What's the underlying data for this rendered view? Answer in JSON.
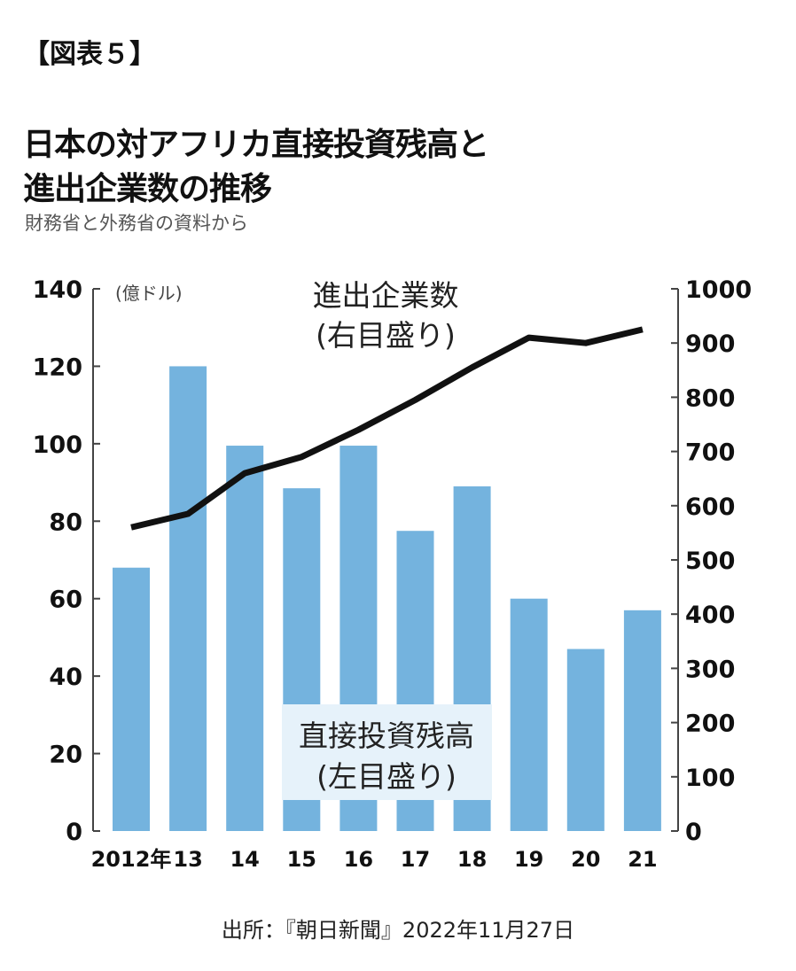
{
  "figure_label": "【図表５】",
  "title_line1": "日本の対アフリカ直接投資残高と",
  "title_line2": "進出企業数の推移",
  "subtitle": "財務省と外務省の資料から",
  "source": "出所：『朝日新聞』2022年11月27日",
  "chart_data": {
    "type": "bar+line",
    "categories": [
      "2012年",
      "13",
      "14",
      "15",
      "16",
      "17",
      "18",
      "19",
      "20",
      "21"
    ],
    "series": [
      {
        "name": "直接投資残高",
        "axis": "left",
        "type": "bar",
        "label_line1": "直接投資残高",
        "label_line2": "(左目盛り)",
        "color": "#74b3de",
        "values": [
          68,
          120,
          99.5,
          88.5,
          99.5,
          77.5,
          89,
          60,
          47,
          57
        ]
      },
      {
        "name": "進出企業数",
        "axis": "right",
        "type": "line",
        "label_line1": "進出企業数",
        "label_line2": "(右目盛り)",
        "color": "#111111",
        "values": [
          560,
          585,
          660,
          690,
          740,
          795,
          855,
          910,
          900,
          925
        ]
      }
    ],
    "left_axis": {
      "unit": "(億ドル)",
      "ylim": [
        0,
        140
      ],
      "ticks": [
        "0",
        "20",
        "40",
        "60",
        "80",
        "100",
        "120",
        "140"
      ]
    },
    "right_axis": {
      "ylim": [
        0,
        1000
      ],
      "ticks": [
        "0",
        "100",
        "200",
        "300",
        "400",
        "500",
        "600",
        "700",
        "800",
        "900",
        "1000"
      ]
    },
    "grid": false
  }
}
